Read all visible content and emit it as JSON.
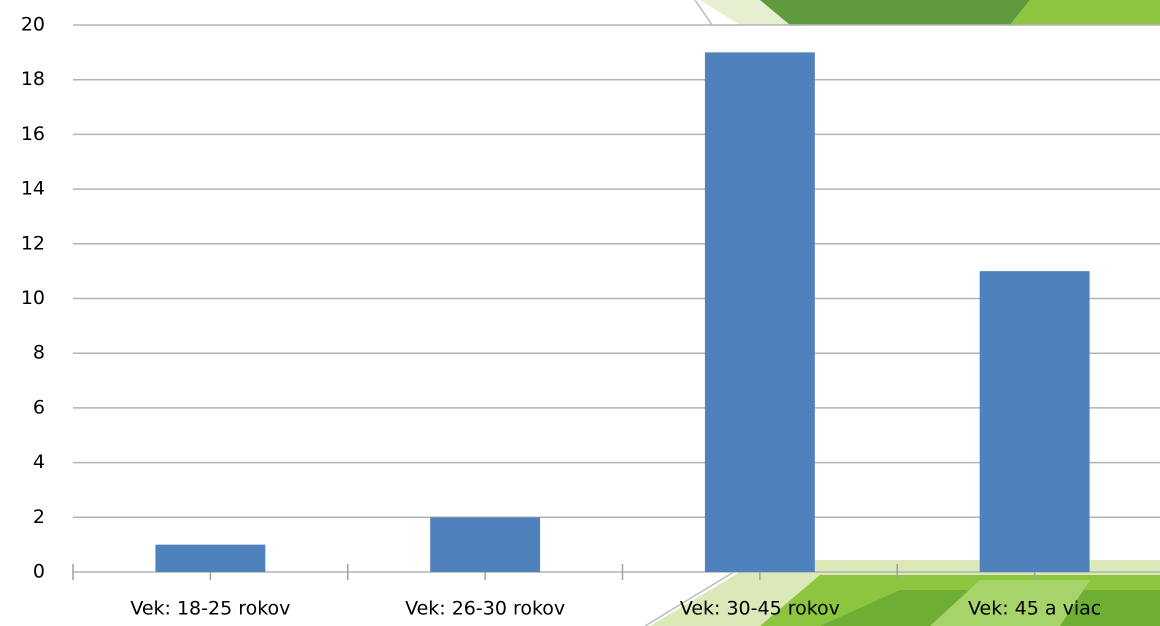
{
  "chart_data": {
    "type": "bar",
    "categories": [
      "Vek: 18-25 rokov",
      "Vek: 26-30 rokov",
      "Vek: 30-45 rokov",
      "Vek: 45 a viac"
    ],
    "values": [
      1,
      2,
      19,
      11
    ],
    "color": "#4f81bd",
    "ylim": [
      0,
      20
    ],
    "yticks": [
      0,
      2,
      4,
      6,
      8,
      10,
      12,
      14,
      16,
      18,
      20
    ],
    "grid": true
  }
}
